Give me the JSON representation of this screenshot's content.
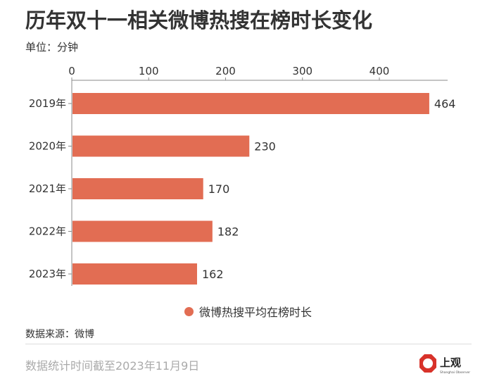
{
  "header": {
    "title": "历年双十一相关微博热搜在榜时长变化",
    "unit": "单位：分钟"
  },
  "chart_data": {
    "type": "bar",
    "orientation": "horizontal",
    "categories": [
      "2019年",
      "2020年",
      "2021年",
      "2022年",
      "2023年"
    ],
    "series": [
      {
        "name": "微博热搜平均在榜时长",
        "values": [
          464,
          230,
          170,
          182,
          162
        ]
      }
    ],
    "xticks": [
      "0",
      "100",
      "200",
      "300",
      "400"
    ],
    "xlim": [
      0,
      490
    ],
    "axis_position": "top",
    "grid": false,
    "legend_position": "bottom-center",
    "bar_color": "#e26d53"
  },
  "footer": {
    "source": "数据来源：微博",
    "note": "数据统计时间截至2023年11月9日",
    "logo_text": "上观",
    "logo_subtext": "Shanghai Observer",
    "logo_color": "#d8322a"
  }
}
